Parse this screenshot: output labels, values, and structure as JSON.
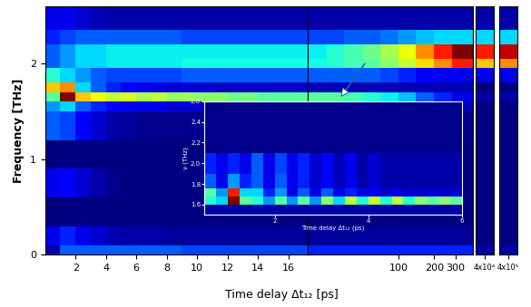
{
  "chart_data": [
    {
      "type": "heatmap",
      "x_label": "Time delay Δt₁₂ [ps]",
      "y_label": "Frequency [THz]",
      "x_edges": [
        0,
        1,
        2,
        3,
        4,
        5,
        6,
        7,
        8,
        9,
        10,
        11,
        12,
        13,
        14,
        15,
        16,
        17.3
      ],
      "y_edges": [
        0,
        0.1,
        0.3,
        0.6,
        0.9,
        1.2,
        1.5,
        1.6,
        1.7,
        1.8,
        1.95,
        2.05,
        2.2,
        2.35,
        2.6
      ],
      "cells": [
        [
          0.15,
          0.3,
          0.3,
          0.3,
          0.3,
          0.3,
          0.3,
          0.3,
          0.3,
          0.28,
          0.28,
          0.28,
          0.28,
          0.28,
          0.28,
          0.28,
          0.28
        ],
        [
          0.2,
          0.25,
          0.2,
          0.18,
          0.16,
          0.15,
          0.15,
          0.15,
          0.14,
          0.14,
          0.14,
          0.14,
          0.14,
          0.14,
          0.14,
          0.14,
          0.14
        ],
        [
          0.12,
          0.12,
          0.12,
          0.12,
          0.12,
          0.12,
          0.12,
          0.12,
          0.12,
          0.12,
          0.12,
          0.12,
          0.12,
          0.12,
          0.12,
          0.12,
          0.12
        ],
        [
          0.2,
          0.22,
          0.18,
          0.15,
          0.13,
          0.12,
          0.12,
          0.12,
          0.12,
          0.12,
          0.12,
          0.12,
          0.12,
          0.12,
          0.12,
          0.12,
          0.12
        ],
        [
          0.12,
          0.12,
          0.12,
          0.12,
          0.12,
          0.12,
          0.12,
          0.12,
          0.12,
          0.12,
          0.12,
          0.12,
          0.12,
          0.12,
          0.12,
          0.12,
          0.12
        ],
        [
          0.3,
          0.28,
          0.22,
          0.18,
          0.15,
          0.14,
          0.13,
          0.13,
          0.13,
          0.13,
          0.13,
          0.13,
          0.13,
          0.13,
          0.13,
          0.13,
          0.13
        ],
        [
          0.35,
          0.4,
          0.3,
          0.25,
          0.22,
          0.2,
          0.2,
          0.2,
          0.18,
          0.18,
          0.18,
          0.17,
          0.17,
          0.17,
          0.17,
          0.17,
          0.17
        ],
        [
          0.5,
          0.95,
          0.7,
          0.65,
          0.6,
          0.62,
          0.58,
          0.6,
          0.56,
          0.57,
          0.55,
          0.55,
          0.52,
          0.53,
          0.5,
          0.5,
          0.5
        ],
        [
          0.7,
          0.75,
          0.4,
          0.3,
          0.25,
          0.22,
          0.2,
          0.2,
          0.18,
          0.18,
          0.18,
          0.17,
          0.17,
          0.17,
          0.17,
          0.17,
          0.17
        ],
        [
          0.45,
          0.4,
          0.35,
          0.3,
          0.28,
          0.28,
          0.28,
          0.28,
          0.28,
          0.3,
          0.3,
          0.3,
          0.3,
          0.3,
          0.3,
          0.3,
          0.3
        ],
        [
          0.3,
          0.35,
          0.4,
          0.4,
          0.42,
          0.42,
          0.42,
          0.42,
          0.42,
          0.43,
          0.43,
          0.43,
          0.43,
          0.43,
          0.43,
          0.43,
          0.43
        ],
        [
          0.3,
          0.35,
          0.4,
          0.4,
          0.42,
          0.42,
          0.42,
          0.42,
          0.42,
          0.42,
          0.42,
          0.42,
          0.42,
          0.42,
          0.42,
          0.42,
          0.42
        ],
        [
          0.25,
          0.28,
          0.3,
          0.3,
          0.3,
          0.3,
          0.3,
          0.3,
          0.3,
          0.28,
          0.28,
          0.28,
          0.28,
          0.28,
          0.28,
          0.28,
          0.28
        ],
        [
          0.2,
          0.2,
          0.18,
          0.16,
          0.15,
          0.15,
          0.15,
          0.15,
          0.15,
          0.15,
          0.15,
          0.15,
          0.15,
          0.15,
          0.15,
          0.15,
          0.15
        ]
      ],
      "xlim": [
        0,
        17.3
      ],
      "ylim": [
        0,
        2.6
      ],
      "xticks": [
        2,
        4,
        6,
        8,
        10,
        12,
        14,
        16
      ],
      "yticks": [
        0,
        1,
        2
      ]
    },
    {
      "type": "heatmap",
      "log": "x",
      "tick_labels": "x",
      "x_edges": [
        17.3,
        25,
        35,
        50,
        70,
        100,
        140,
        200,
        280,
        420
      ],
      "y_edges": [
        0,
        0.1,
        0.3,
        0.6,
        0.9,
        1.2,
        1.5,
        1.6,
        1.7,
        1.8,
        1.95,
        2.05,
        2.2,
        2.35,
        2.6
      ],
      "cells": [
        [
          0.25,
          0.25,
          0.25,
          0.25,
          0.25,
          0.25,
          0.25,
          0.25,
          0.25
        ],
        [
          0.14,
          0.14,
          0.14,
          0.14,
          0.14,
          0.14,
          0.14,
          0.14,
          0.14
        ],
        [
          0.12,
          0.12,
          0.12,
          0.12,
          0.12,
          0.12,
          0.12,
          0.12,
          0.12
        ],
        [
          0.12,
          0.12,
          0.12,
          0.12,
          0.12,
          0.12,
          0.12,
          0.12,
          0.12
        ],
        [
          0.12,
          0.12,
          0.12,
          0.12,
          0.12,
          0.12,
          0.12,
          0.12,
          0.12
        ],
        [
          0.13,
          0.13,
          0.13,
          0.13,
          0.13,
          0.13,
          0.13,
          0.13,
          0.13
        ],
        [
          0.16,
          0.16,
          0.16,
          0.16,
          0.16,
          0.16,
          0.16,
          0.16,
          0.16
        ],
        [
          0.5,
          0.5,
          0.48,
          0.45,
          0.42,
          0.38,
          0.3,
          0.25,
          0.2
        ],
        [
          0.16,
          0.16,
          0.16,
          0.16,
          0.16,
          0.16,
          0.16,
          0.16,
          0.16
        ],
        [
          0.3,
          0.3,
          0.3,
          0.3,
          0.28,
          0.25,
          0.22,
          0.2,
          0.2
        ],
        [
          0.43,
          0.45,
          0.48,
          0.5,
          0.55,
          0.6,
          0.68,
          0.75,
          0.85
        ],
        [
          0.42,
          0.45,
          0.48,
          0.52,
          0.58,
          0.65,
          0.75,
          0.85,
          0.95
        ],
        [
          0.28,
          0.28,
          0.3,
          0.3,
          0.32,
          0.35,
          0.38,
          0.4,
          0.4
        ],
        [
          0.15,
          0.15,
          0.15,
          0.15,
          0.15,
          0.15,
          0.15,
          0.15,
          0.15
        ]
      ],
      "xlim": [
        17.3,
        420
      ],
      "ylim": [
        0,
        2.6
      ],
      "xticks": [
        100,
        200,
        300
      ]
    },
    {
      "type": "heatmap",
      "tick_labels": "x",
      "x_edges": [
        30000,
        50000
      ],
      "y_edges": [
        0,
        0.1,
        0.3,
        0.6,
        0.9,
        1.2,
        1.5,
        1.6,
        1.7,
        1.8,
        1.95,
        2.05,
        2.2,
        2.35,
        2.6
      ],
      "cells": [
        [
          0.15
        ],
        [
          0.12
        ],
        [
          0.12
        ],
        [
          0.12
        ],
        [
          0.12
        ],
        [
          0.12
        ],
        [
          0.12
        ],
        [
          0.15
        ],
        [
          0.12
        ],
        [
          0.2
        ],
        [
          0.7
        ],
        [
          0.85
        ],
        [
          0.4
        ],
        [
          0.15
        ]
      ],
      "xlim": [
        30000,
        50000
      ],
      "ylim": [
        0,
        2.6
      ],
      "xticks": [
        {
          "value": 40000,
          "label": "4x10⁴"
        }
      ]
    },
    {
      "type": "heatmap",
      "tick_labels": "x",
      "x_edges": [
        300000,
        500000
      ],
      "y_edges": [
        0,
        0.1,
        0.3,
        0.6,
        0.9,
        1.2,
        1.5,
        1.6,
        1.7,
        1.8,
        1.95,
        2.05,
        2.2,
        2.35,
        2.6
      ],
      "cells": [
        [
          0.15
        ],
        [
          0.12
        ],
        [
          0.12
        ],
        [
          0.12
        ],
        [
          0.12
        ],
        [
          0.12
        ],
        [
          0.12
        ],
        [
          0.15
        ],
        [
          0.12
        ],
        [
          0.2
        ],
        [
          0.75
        ],
        [
          0.9
        ],
        [
          0.4
        ],
        [
          0.15
        ]
      ],
      "xlim": [
        300000,
        500000
      ],
      "ylim": [
        0,
        2.6
      ],
      "xticks": [
        {
          "value": 400000,
          "label": "4x10⁵"
        }
      ]
    },
    {
      "type": "heatmap",
      "x_label": "Time delay Δt₁₂ (ps)",
      "y_label": "ν (THz)",
      "x_edges": [
        0.5,
        0.75,
        1.0,
        1.25,
        1.5,
        1.75,
        2.0,
        2.25,
        2.5,
        2.75,
        3.0,
        3.25,
        3.5,
        3.75,
        4.0,
        4.25,
        4.5,
        4.75,
        5.0,
        5.25,
        5.5,
        5.75,
        6.0
      ],
      "y_edges": [
        1.5,
        1.6,
        1.68,
        1.76,
        1.9,
        2.1,
        2.6
      ],
      "cells": [
        [
          0.15,
          0.15,
          0.15,
          0.15,
          0.15,
          0.15,
          0.15,
          0.15,
          0.15,
          0.15,
          0.15,
          0.15,
          0.15,
          0.15,
          0.15,
          0.15,
          0.15,
          0.15,
          0.15,
          0.15,
          0.15,
          0.15
        ],
        [
          0.45,
          0.4,
          0.95,
          0.5,
          0.45,
          0.35,
          0.5,
          0.35,
          0.5,
          0.35,
          0.55,
          0.4,
          0.6,
          0.45,
          0.6,
          0.45,
          0.6,
          0.45,
          0.55,
          0.5,
          0.55,
          0.5
        ],
        [
          0.5,
          0.35,
          0.85,
          0.4,
          0.4,
          0.25,
          0.35,
          0.2,
          0.3,
          0.2,
          0.3,
          0.2,
          0.25,
          0.2,
          0.2,
          0.18,
          0.2,
          0.18,
          0.18,
          0.18,
          0.18,
          0.18
        ],
        [
          0.3,
          0.2,
          0.35,
          0.25,
          0.3,
          0.2,
          0.3,
          0.2,
          0.25,
          0.18,
          0.22,
          0.16,
          0.2,
          0.15,
          0.18,
          0.15,
          0.15,
          0.15,
          0.15,
          0.15,
          0.15,
          0.15
        ],
        [
          0.25,
          0.2,
          0.25,
          0.2,
          0.3,
          0.2,
          0.28,
          0.2,
          0.25,
          0.18,
          0.22,
          0.16,
          0.2,
          0.15,
          0.18,
          0.15,
          0.15,
          0.15,
          0.15,
          0.15,
          0.15,
          0.15
        ],
        [
          0.13,
          0.13,
          0.13,
          0.13,
          0.13,
          0.13,
          0.13,
          0.13,
          0.13,
          0.13,
          0.13,
          0.13,
          0.13,
          0.13,
          0.13,
          0.13,
          0.13,
          0.13,
          0.13,
          0.13,
          0.13,
          0.13
        ]
      ],
      "xlim": [
        0.5,
        6.0
      ],
      "ylim": [
        1.5,
        2.6
      ],
      "xticks": [
        2,
        4,
        6
      ],
      "yticks": [
        1.6,
        1.8,
        {
          "value": 2.0,
          "label": "2.0"
        },
        2.2,
        2.4,
        2.6
      ]
    }
  ]
}
